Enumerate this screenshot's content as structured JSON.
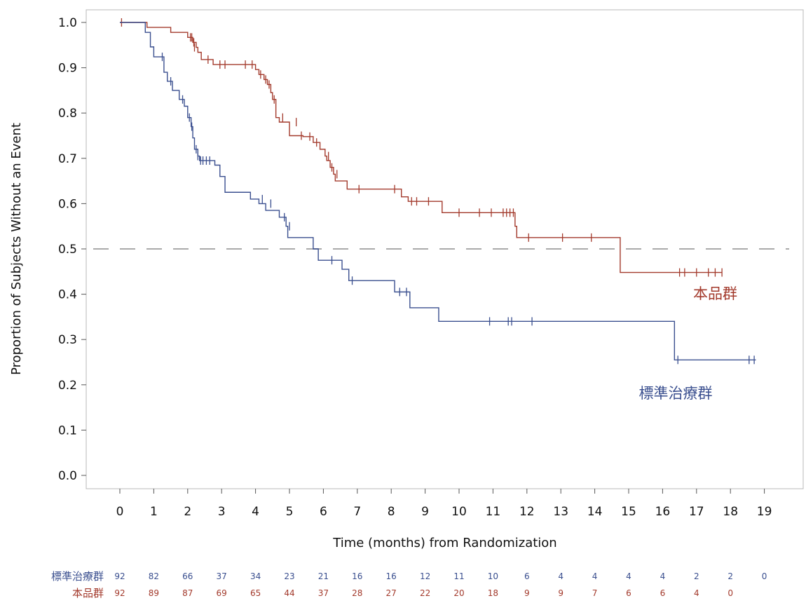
{
  "chart_data": {
    "type": "line",
    "subtype": "kaplan-meier",
    "title": "",
    "xlabel": "Time (months) from Randomization",
    "ylabel": "Proportion of Subjects Without an Event",
    "xlim": [
      -1,
      20
    ],
    "ylim": [
      0,
      1.0
    ],
    "x_ticks": [
      0,
      1,
      2,
      3,
      4,
      5,
      6,
      7,
      8,
      9,
      10,
      11,
      12,
      13,
      14,
      15,
      16,
      17,
      18,
      19
    ],
    "y_ticks": [
      0.0,
      0.1,
      0.2,
      0.3,
      0.4,
      0.5,
      0.6,
      0.7,
      0.8,
      0.9,
      1.0
    ],
    "reference_line": {
      "y": 0.5,
      "style": "dashed",
      "color": "#aaaaaa"
    },
    "grid": false,
    "series": [
      {
        "name": "本品群",
        "color": "#a33a2c",
        "steps": [
          [
            0,
            1.0
          ],
          [
            0.8,
            0.989
          ],
          [
            1.5,
            0.978
          ],
          [
            2.0,
            0.967
          ],
          [
            2.15,
            0.956
          ],
          [
            2.25,
            0.945
          ],
          [
            2.3,
            0.934
          ],
          [
            2.4,
            0.918
          ],
          [
            2.75,
            0.907
          ],
          [
            4.0,
            0.896
          ],
          [
            4.1,
            0.885
          ],
          [
            4.25,
            0.874
          ],
          [
            4.35,
            0.863
          ],
          [
            4.45,
            0.845
          ],
          [
            4.5,
            0.83
          ],
          [
            4.6,
            0.79
          ],
          [
            4.7,
            0.78
          ],
          [
            5.0,
            0.75
          ],
          [
            5.4,
            0.748
          ],
          [
            5.7,
            0.735
          ],
          [
            5.9,
            0.72
          ],
          [
            6.05,
            0.705
          ],
          [
            6.1,
            0.695
          ],
          [
            6.2,
            0.68
          ],
          [
            6.3,
            0.665
          ],
          [
            6.35,
            0.65
          ],
          [
            6.7,
            0.632
          ],
          [
            8.3,
            0.615
          ],
          [
            8.5,
            0.605
          ],
          [
            9.5,
            0.58
          ],
          [
            11.65,
            0.55
          ],
          [
            11.7,
            0.525
          ],
          [
            14.75,
            0.448
          ]
        ],
        "censors": [
          [
            0.05,
            1.0
          ],
          [
            2.08,
            0.967
          ],
          [
            2.12,
            0.967
          ],
          [
            2.18,
            0.956
          ],
          [
            2.2,
            0.945
          ],
          [
            2.6,
            0.918
          ],
          [
            2.95,
            0.907
          ],
          [
            3.1,
            0.907
          ],
          [
            3.7,
            0.907
          ],
          [
            3.9,
            0.907
          ],
          [
            4.15,
            0.885
          ],
          [
            4.3,
            0.874
          ],
          [
            4.4,
            0.863
          ],
          [
            4.55,
            0.83
          ],
          [
            4.8,
            0.79
          ],
          [
            5.2,
            0.78
          ],
          [
            5.35,
            0.75
          ],
          [
            5.6,
            0.748
          ],
          [
            5.8,
            0.735
          ],
          [
            6.15,
            0.705
          ],
          [
            6.25,
            0.68
          ],
          [
            6.4,
            0.665
          ],
          [
            7.05,
            0.632
          ],
          [
            8.1,
            0.632
          ],
          [
            8.6,
            0.605
          ],
          [
            8.75,
            0.605
          ],
          [
            9.1,
            0.605
          ],
          [
            10.0,
            0.58
          ],
          [
            10.6,
            0.58
          ],
          [
            10.95,
            0.58
          ],
          [
            11.3,
            0.58
          ],
          [
            11.4,
            0.58
          ],
          [
            11.5,
            0.58
          ],
          [
            11.6,
            0.58
          ],
          [
            12.05,
            0.525
          ],
          [
            13.05,
            0.525
          ],
          [
            13.9,
            0.525
          ],
          [
            16.5,
            0.448
          ],
          [
            16.65,
            0.448
          ],
          [
            17.0,
            0.448
          ],
          [
            17.35,
            0.448
          ],
          [
            17.55,
            0.448
          ],
          [
            17.75,
            0.448
          ]
        ],
        "end_x": 17.75,
        "label_pos": [
          16.9,
          0.39
        ]
      },
      {
        "name": "標準治療群",
        "color": "#3a4f8f",
        "steps": [
          [
            0,
            1.0
          ],
          [
            0.75,
            0.978
          ],
          [
            0.9,
            0.946
          ],
          [
            1.0,
            0.924
          ],
          [
            1.3,
            0.89
          ],
          [
            1.4,
            0.87
          ],
          [
            1.55,
            0.85
          ],
          [
            1.75,
            0.83
          ],
          [
            1.9,
            0.815
          ],
          [
            2.0,
            0.79
          ],
          [
            2.1,
            0.77
          ],
          [
            2.15,
            0.745
          ],
          [
            2.2,
            0.72
          ],
          [
            2.3,
            0.705
          ],
          [
            2.35,
            0.695
          ],
          [
            2.8,
            0.685
          ],
          [
            2.95,
            0.66
          ],
          [
            3.1,
            0.625
          ],
          [
            3.85,
            0.61
          ],
          [
            4.1,
            0.6
          ],
          [
            4.3,
            0.585
          ],
          [
            4.7,
            0.57
          ],
          [
            4.9,
            0.55
          ],
          [
            4.95,
            0.525
          ],
          [
            5.7,
            0.5
          ],
          [
            5.85,
            0.475
          ],
          [
            6.55,
            0.455
          ],
          [
            6.75,
            0.43
          ],
          [
            8.1,
            0.405
          ],
          [
            8.55,
            0.37
          ],
          [
            9.4,
            0.34
          ],
          [
            16.35,
            0.255
          ]
        ],
        "censors": [
          [
            1.25,
            0.924
          ],
          [
            1.5,
            0.87
          ],
          [
            1.85,
            0.83
          ],
          [
            2.05,
            0.79
          ],
          [
            2.12,
            0.77
          ],
          [
            2.25,
            0.72
          ],
          [
            2.3,
            0.705
          ],
          [
            2.38,
            0.695
          ],
          [
            2.45,
            0.695
          ],
          [
            2.55,
            0.695
          ],
          [
            2.65,
            0.695
          ],
          [
            4.2,
            0.61
          ],
          [
            4.45,
            0.6
          ],
          [
            4.85,
            0.57
          ],
          [
            5.0,
            0.55
          ],
          [
            6.25,
            0.475
          ],
          [
            6.85,
            0.43
          ],
          [
            8.25,
            0.405
          ],
          [
            8.45,
            0.405
          ],
          [
            10.9,
            0.34
          ],
          [
            11.45,
            0.34
          ],
          [
            11.55,
            0.34
          ],
          [
            12.15,
            0.34
          ],
          [
            16.45,
            0.255
          ],
          [
            18.55,
            0.255
          ],
          [
            18.7,
            0.255
          ]
        ],
        "end_x": 18.75,
        "label_pos": [
          15.3,
          0.17
        ]
      }
    ],
    "risk_table": {
      "times": [
        0,
        1,
        2,
        3,
        4,
        5,
        6,
        7,
        8,
        9,
        10,
        11,
        12,
        13,
        14,
        15,
        16,
        17,
        18,
        19
      ],
      "rows": [
        {
          "name": "標準治療群",
          "color": "#3a4f8f",
          "values": [
            "92",
            "82",
            "66",
            "37",
            "34",
            "23",
            "21",
            "16",
            "16",
            "12",
            "11",
            "10",
            "6",
            "4",
            "4",
            "4",
            "4",
            "2",
            "2",
            "0"
          ]
        },
        {
          "name": "本品群",
          "color": "#a33a2c",
          "values": [
            "92",
            "89",
            "87",
            "69",
            "65",
            "44",
            "37",
            "28",
            "27",
            "22",
            "20",
            "18",
            "9",
            "9",
            "7",
            "6",
            "6",
            "4",
            "0",
            ""
          ]
        }
      ]
    }
  }
}
